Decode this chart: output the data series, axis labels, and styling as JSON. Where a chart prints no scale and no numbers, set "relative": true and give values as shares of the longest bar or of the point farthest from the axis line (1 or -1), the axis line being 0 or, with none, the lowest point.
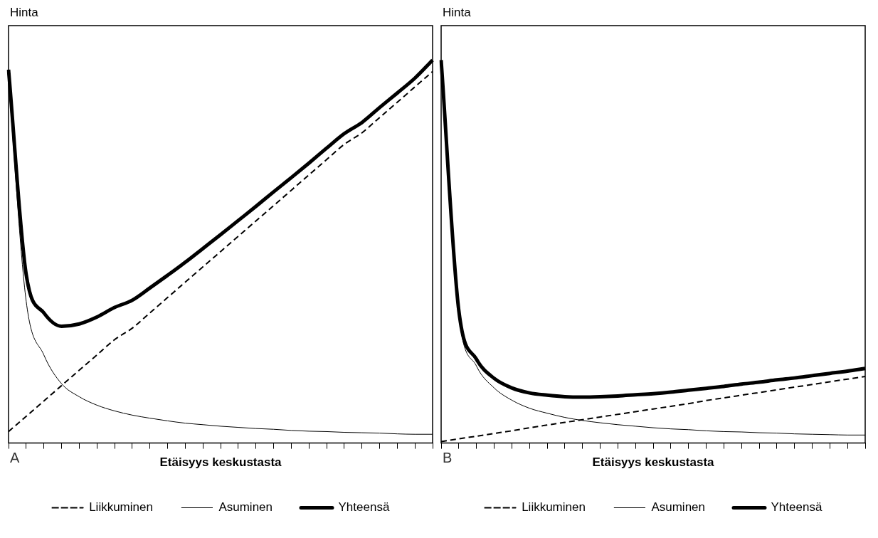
{
  "chart_data": [
    {
      "type": "line",
      "relative": true,
      "ylabel": "Hinta",
      "xlabel": "Etäisyys keskustasta",
      "annotations": [
        "A"
      ],
      "legend": "bottom",
      "marker": "none",
      "tick_labels": false,
      "categories": [
        null,
        null,
        null,
        null,
        null,
        null,
        null,
        null,
        null,
        null,
        null,
        null,
        null,
        null,
        null,
        null,
        null,
        null,
        null,
        null,
        null,
        null,
        null,
        null,
        null
      ],
      "series": [
        {
          "name": "Liikkuminen",
          "color": "#000000",
          "line_style": "dashed",
          "values": [
            0.03,
            0.07,
            0.11,
            0.15,
            0.19,
            0.23,
            0.27,
            0.3,
            0.34,
            0.38,
            0.42,
            0.46,
            0.5,
            0.54,
            0.58,
            0.62,
            0.66,
            0.7,
            0.74,
            0.78,
            0.81,
            0.85,
            0.89,
            0.93,
            0.97
          ]
        },
        {
          "name": "Asuminen",
          "color": "#000000",
          "line_style": "solid",
          "values": [
            0.945,
            0.37,
            0.23,
            0.155,
            0.121,
            0.099,
            0.084,
            0.073,
            0.065,
            0.058,
            0.052,
            0.048,
            0.044,
            0.041,
            0.038,
            0.036,
            0.033,
            0.031,
            0.03,
            0.028,
            0.027,
            0.026,
            0.024,
            0.023,
            0.023
          ]
        },
        {
          "name": "Yhteensä",
          "color": "#000000",
          "line_style": "solid",
          "values": [
            0.975,
            0.44,
            0.34,
            0.305,
            0.311,
            0.329,
            0.354,
            0.373,
            0.405,
            0.438,
            0.472,
            0.508,
            0.544,
            0.581,
            0.618,
            0.656,
            0.693,
            0.731,
            0.77,
            0.808,
            0.837,
            0.876,
            0.914,
            0.953,
            1.0
          ]
        }
      ]
    },
    {
      "type": "line",
      "relative": true,
      "ylabel": "Hinta",
      "xlabel": "Etäisyys keskustasta",
      "annotations": [
        "B"
      ],
      "legend": "bottom",
      "marker": "none",
      "tick_labels": false,
      "categories": [
        null,
        null,
        null,
        null,
        null,
        null,
        null,
        null,
        null,
        null,
        null,
        null,
        null,
        null,
        null,
        null,
        null,
        null,
        null,
        null,
        null,
        null,
        null,
        null,
        null
      ],
      "series": [
        {
          "name": "Liikkuminen",
          "color": "#000000",
          "line_style": "dashed",
          "values": [
            0.004,
            0.011,
            0.018,
            0.025,
            0.032,
            0.04,
            0.047,
            0.054,
            0.061,
            0.068,
            0.075,
            0.082,
            0.089,
            0.096,
            0.103,
            0.111,
            0.118,
            0.125,
            0.132,
            0.139,
            0.146,
            0.153,
            0.16,
            0.167,
            0.174
          ]
        },
        {
          "name": "Asuminen",
          "color": "#000000",
          "line_style": "solid",
          "values": [
            0.99,
            0.335,
            0.201,
            0.144,
            0.112,
            0.091,
            0.078,
            0.067,
            0.059,
            0.053,
            0.048,
            0.044,
            0.04,
            0.037,
            0.035,
            0.032,
            0.03,
            0.029,
            0.027,
            0.026,
            0.024,
            0.023,
            0.022,
            0.021,
            0.021
          ]
        },
        {
          "name": "Yhteensä",
          "color": "#000000",
          "line_style": "solid",
          "values": [
            1.0,
            0.346,
            0.219,
            0.169,
            0.144,
            0.131,
            0.125,
            0.121,
            0.12,
            0.121,
            0.123,
            0.126,
            0.129,
            0.133,
            0.138,
            0.143,
            0.148,
            0.154,
            0.159,
            0.165,
            0.17,
            0.176,
            0.182,
            0.188,
            0.195
          ]
        }
      ]
    }
  ]
}
